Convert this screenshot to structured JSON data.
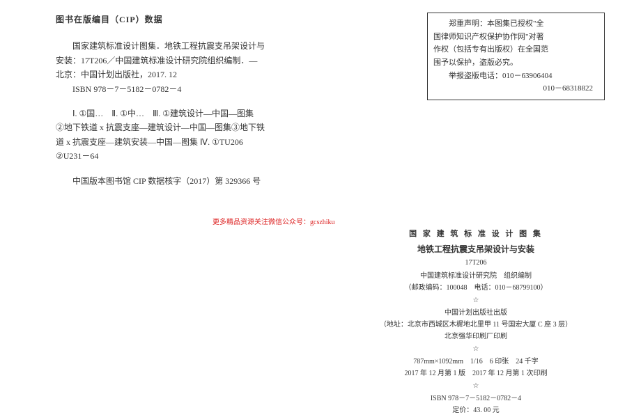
{
  "cip": {
    "heading": "图书在版编目（CIP）数据",
    "para1_l1": "国家建筑标准设计图集．地铁工程抗震支吊架设计与",
    "para1_l2": "安装：17T206／中国建筑标准设计研究院组织编制．—",
    "para1_l3": "北京：中国计划出版社，2017. 12",
    "para1_l4": "ISBN 978－7－5182－0782－4",
    "para2_l1": "Ⅰ. ①国…　Ⅱ. ①中…　Ⅲ. ①建筑设计—中国—图集",
    "para2_l2": "②地下铁道 x 抗震支座—建筑设计—中国—图集③地下铁",
    "para2_l3": "道 x 抗震支座—建筑安装—中国—图集 Ⅳ. ①TU206",
    "para2_l4": "②U231－64",
    "verify": "中国版本图书馆 CIP 数据核字（2017）第 329366 号"
  },
  "red_note": "更多精品资源关注微信公众号：gcszhiku",
  "notice": {
    "l1": "郑重声明：本图集已授权\"全",
    "l2": "国律师知识产权保护协作网\"对著",
    "l3": "作权（包括专有出版权）在全国范",
    "l4": "围予以保护，盗版必究。",
    "l5": "举报盗版电话：010－63906404",
    "l6": "010－68318822"
  },
  "imprint": {
    "title1": "国 家 建 筑 标 准 设 计 图 集",
    "title2": "地铁工程抗震支吊架设计与安装",
    "code": "17T206",
    "org": "中国建筑标准设计研究院　组织编制",
    "postal": "（邮政编码：100048　电话：010－68799100）",
    "star": "☆",
    "publisher": "中国计划出版社出版",
    "address": "（地址：北京市西城区木樨地北里甲 11 号国宏大厦 C 座 3 层）",
    "printer": "北京强华印刷厂印刷",
    "spec1": "787mm×1092mm　1/16　6 印张　24 千字",
    "spec2": "2017 年 12 月第 1 版　2017 年 12 月第 1 次印刷",
    "isbn": "ISBN 978－7－5182－0782－4",
    "price": "定价：43. 00 元"
  }
}
